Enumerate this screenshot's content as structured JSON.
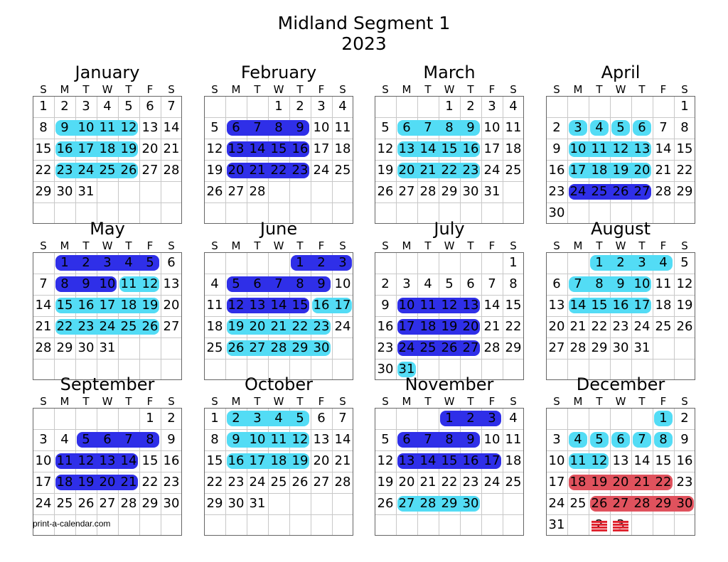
{
  "title": "Midland Segment 1",
  "year": "2023",
  "footer": "print-a-calendar.com",
  "colors": {
    "light": "#53dcf5",
    "dark": "#2f2fe8",
    "red": "#e0525d",
    "strike": "#e0242f"
  },
  "weekdays": [
    "S",
    "M",
    "T",
    "W",
    "T",
    "F",
    "S"
  ],
  "months": [
    {
      "name": "January",
      "offset": 0,
      "days": 31,
      "highlights": [
        {
          "row": 1,
          "from": 1,
          "to": 4,
          "color": "light"
        },
        {
          "row": 2,
          "from": 1,
          "to": 4,
          "color": "light"
        },
        {
          "row": 3,
          "from": 1,
          "to": 4,
          "color": "light"
        }
      ]
    },
    {
      "name": "February",
      "offset": 3,
      "days": 28,
      "highlights": [
        {
          "row": 1,
          "from": 1,
          "to": 4,
          "color": "dark"
        },
        {
          "row": 2,
          "from": 1,
          "to": 4,
          "color": "dark"
        },
        {
          "row": 3,
          "from": 1,
          "to": 4,
          "color": "dark"
        }
      ]
    },
    {
      "name": "March",
      "offset": 3,
      "days": 31,
      "highlights": [
        {
          "row": 1,
          "from": 1,
          "to": 4,
          "color": "light"
        },
        {
          "row": 2,
          "from": 1,
          "to": 4,
          "color": "light"
        },
        {
          "row": 3,
          "from": 1,
          "to": 4,
          "color": "light"
        }
      ]
    },
    {
      "name": "April",
      "offset": 6,
      "days": 30,
      "highlights": [
        {
          "row": 1,
          "from": 1,
          "to": 1,
          "color": "light"
        },
        {
          "row": 1,
          "from": 2,
          "to": 2,
          "color": "light"
        },
        {
          "row": 1,
          "from": 3,
          "to": 3,
          "color": "light"
        },
        {
          "row": 1,
          "from": 4,
          "to": 4,
          "color": "light"
        },
        {
          "row": 2,
          "from": 1,
          "to": 4,
          "color": "light"
        },
        {
          "row": 3,
          "from": 1,
          "to": 4,
          "color": "light"
        },
        {
          "row": 4,
          "from": 1,
          "to": 4,
          "color": "dark"
        }
      ]
    },
    {
      "name": "May",
      "offset": 1,
      "days": 31,
      "highlights": [
        {
          "row": 0,
          "from": 1,
          "to": 5,
          "color": "dark"
        },
        {
          "row": 1,
          "from": 1,
          "to": 3,
          "color": "dark"
        },
        {
          "row": 1,
          "from": 4,
          "to": 5,
          "color": "light"
        },
        {
          "row": 2,
          "from": 1,
          "to": 5,
          "color": "light"
        },
        {
          "row": 3,
          "from": 1,
          "to": 5,
          "color": "light"
        }
      ]
    },
    {
      "name": "June",
      "offset": 4,
      "days": 30,
      "highlights": [
        {
          "row": 0,
          "from": 4,
          "to": 6,
          "color": "dark"
        },
        {
          "row": 1,
          "from": 1,
          "to": 5,
          "color": "dark"
        },
        {
          "row": 2,
          "from": 1,
          "to": 4,
          "color": "dark"
        },
        {
          "row": 2,
          "from": 5,
          "to": 6,
          "color": "light"
        },
        {
          "row": 3,
          "from": 1,
          "to": 5,
          "color": "light"
        },
        {
          "row": 4,
          "from": 1,
          "to": 5,
          "color": "light"
        }
      ]
    },
    {
      "name": "July",
      "offset": 6,
      "days": 31,
      "highlights": [
        {
          "row": 2,
          "from": 1,
          "to": 4,
          "color": "dark"
        },
        {
          "row": 3,
          "from": 1,
          "to": 4,
          "color": "dark"
        },
        {
          "row": 4,
          "from": 1,
          "to": 4,
          "color": "dark"
        },
        {
          "row": 5,
          "from": 1,
          "to": 1,
          "color": "light"
        }
      ]
    },
    {
      "name": "August",
      "offset": 2,
      "days": 31,
      "highlights": [
        {
          "row": 0,
          "from": 2,
          "to": 5,
          "color": "light"
        },
        {
          "row": 1,
          "from": 1,
          "to": 4,
          "color": "light"
        },
        {
          "row": 2,
          "from": 1,
          "to": 4,
          "color": "light"
        }
      ]
    },
    {
      "name": "September",
      "offset": 5,
      "days": 30,
      "highlights": [
        {
          "row": 1,
          "from": 2,
          "to": 5,
          "color": "dark"
        },
        {
          "row": 2,
          "from": 1,
          "to": 4,
          "color": "dark"
        },
        {
          "row": 3,
          "from": 1,
          "to": 4,
          "color": "dark"
        }
      ]
    },
    {
      "name": "October",
      "offset": 0,
      "days": 31,
      "highlights": [
        {
          "row": 0,
          "from": 1,
          "to": 4,
          "color": "light"
        },
        {
          "row": 1,
          "from": 1,
          "to": 4,
          "color": "light"
        },
        {
          "row": 2,
          "from": 1,
          "to": 4,
          "color": "light"
        }
      ]
    },
    {
      "name": "November",
      "offset": 3,
      "days": 30,
      "highlights": [
        {
          "row": 0,
          "from": 3,
          "to": 5,
          "color": "dark"
        },
        {
          "row": 1,
          "from": 1,
          "to": 4,
          "color": "dark"
        },
        {
          "row": 2,
          "from": 1,
          "to": 5,
          "color": "dark"
        },
        {
          "row": 4,
          "from": 1,
          "to": 4,
          "color": "light"
        }
      ]
    },
    {
      "name": "December",
      "offset": 5,
      "days": 31,
      "highlights": [
        {
          "row": 0,
          "from": 5,
          "to": 5,
          "color": "light"
        },
        {
          "row": 1,
          "from": 1,
          "to": 1,
          "color": "light"
        },
        {
          "row": 1,
          "from": 2,
          "to": 2,
          "color": "light"
        },
        {
          "row": 1,
          "from": 3,
          "to": 3,
          "color": "light"
        },
        {
          "row": 1,
          "from": 4,
          "to": 4,
          "color": "light"
        },
        {
          "row": 1,
          "from": 5,
          "to": 5,
          "color": "light"
        },
        {
          "row": 2,
          "from": 1,
          "to": 2,
          "color": "light"
        },
        {
          "row": 3,
          "from": 1,
          "to": 5,
          "color": "red"
        },
        {
          "row": 4,
          "from": 2,
          "to": 6,
          "color": "red"
        }
      ],
      "extra_days": [
        {
          "row": 5,
          "col": 2,
          "label": "2",
          "struck": true
        },
        {
          "row": 5,
          "col": 3,
          "label": "3",
          "struck": true
        }
      ]
    }
  ]
}
